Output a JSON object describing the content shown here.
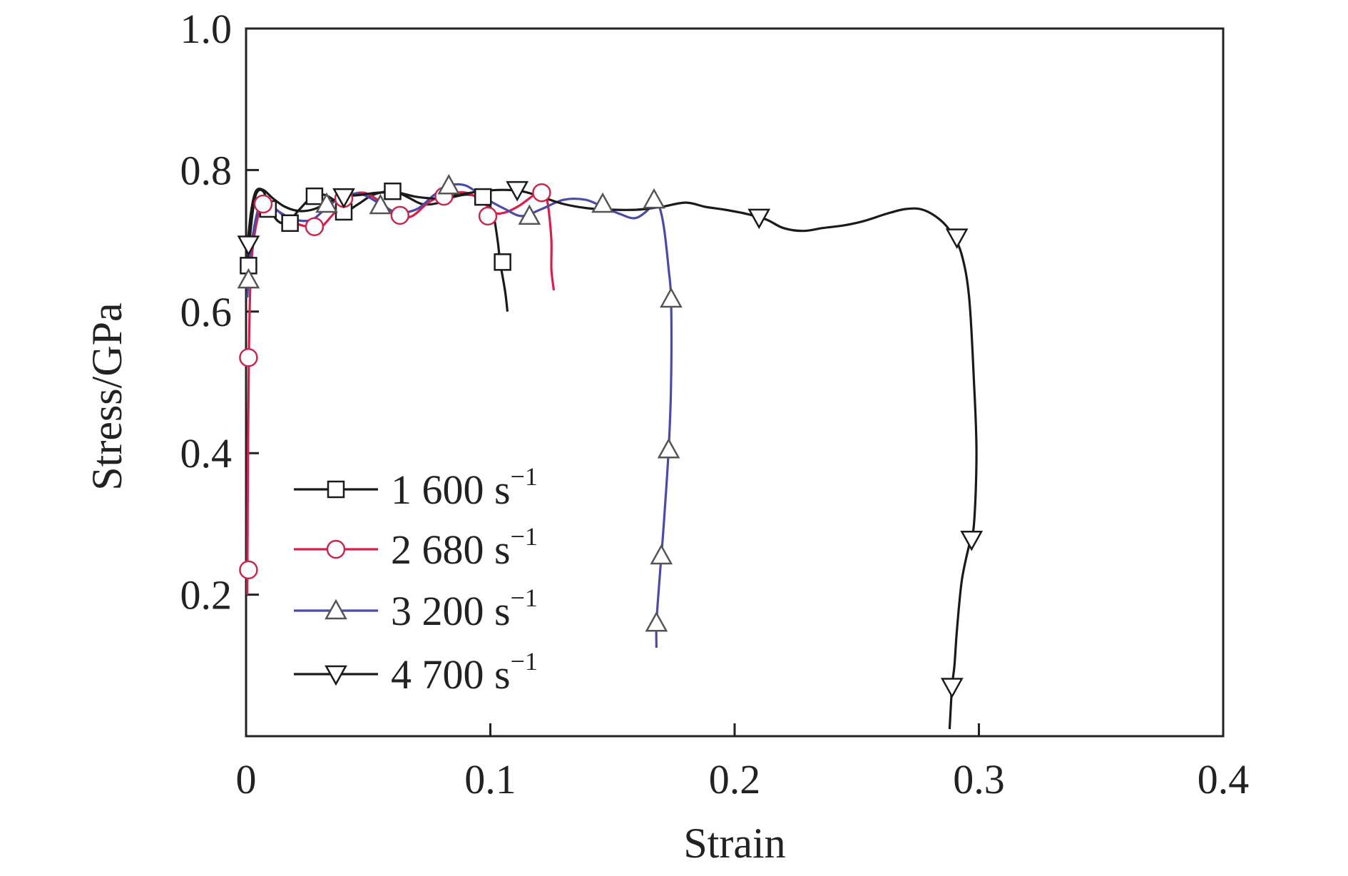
{
  "chart_data": {
    "type": "line",
    "title": "",
    "xlabel": "Strain",
    "ylabel": "Stress/GPa",
    "xlim": [
      0,
      0.4
    ],
    "ylim": [
      0,
      1.0
    ],
    "x_ticks": [
      "0",
      "0.1",
      "0.2",
      "0.3",
      "0.4"
    ],
    "y_ticks": [
      "0.2",
      "0.4",
      "0.6",
      "0.8",
      "1.0"
    ],
    "grid": false,
    "legend_position": "bottom-left",
    "series": [
      {
        "name": "1 600 s",
        "name_superscript": "−1",
        "color": "#1a1a1a",
        "marker": "square",
        "line_points": [
          [
            0.0005,
            0.66
          ],
          [
            0.002,
            0.72
          ],
          [
            0.004,
            0.765
          ],
          [
            0.007,
            0.77
          ],
          [
            0.01,
            0.745
          ],
          [
            0.013,
            0.728
          ],
          [
            0.017,
            0.726
          ],
          [
            0.022,
            0.745
          ],
          [
            0.027,
            0.762
          ],
          [
            0.032,
            0.765
          ],
          [
            0.037,
            0.755
          ],
          [
            0.041,
            0.743
          ],
          [
            0.046,
            0.752
          ],
          [
            0.052,
            0.765
          ],
          [
            0.06,
            0.77
          ],
          [
            0.066,
            0.762
          ],
          [
            0.072,
            0.752
          ],
          [
            0.078,
            0.753
          ],
          [
            0.085,
            0.762
          ],
          [
            0.092,
            0.765
          ],
          [
            0.098,
            0.755
          ],
          [
            0.101,
            0.74
          ],
          [
            0.103,
            0.7
          ],
          [
            0.104,
            0.67
          ],
          [
            0.106,
            0.63
          ],
          [
            0.107,
            0.6
          ]
        ],
        "markers": [
          [
            0.001,
            0.665
          ],
          [
            0.009,
            0.745
          ],
          [
            0.018,
            0.725
          ],
          [
            0.028,
            0.763
          ],
          [
            0.04,
            0.741
          ],
          [
            0.06,
            0.77
          ],
          [
            0.097,
            0.762
          ],
          [
            0.105,
            0.67
          ]
        ]
      },
      {
        "name": "2 680 s",
        "name_superscript": "−1",
        "color": "#d81e4b",
        "marker": "circle",
        "line_points": [
          [
            0.0005,
            0.2
          ],
          [
            0.0008,
            0.4
          ],
          [
            0.0012,
            0.55
          ],
          [
            0.002,
            0.66
          ],
          [
            0.004,
            0.72
          ],
          [
            0.007,
            0.752
          ],
          [
            0.012,
            0.745
          ],
          [
            0.018,
            0.728
          ],
          [
            0.025,
            0.72
          ],
          [
            0.03,
            0.718
          ],
          [
            0.035,
            0.735
          ],
          [
            0.041,
            0.76
          ],
          [
            0.048,
            0.768
          ],
          [
            0.055,
            0.755
          ],
          [
            0.062,
            0.735
          ],
          [
            0.068,
            0.735
          ],
          [
            0.075,
            0.755
          ],
          [
            0.082,
            0.765
          ],
          [
            0.09,
            0.768
          ],
          [
            0.097,
            0.755
          ],
          [
            0.101,
            0.74
          ],
          [
            0.106,
            0.74
          ],
          [
            0.112,
            0.75
          ],
          [
            0.118,
            0.765
          ],
          [
            0.121,
            0.768
          ],
          [
            0.123,
            0.76
          ],
          [
            0.124,
            0.74
          ],
          [
            0.125,
            0.7
          ],
          [
            0.125,
            0.66
          ],
          [
            0.126,
            0.63
          ]
        ],
        "markers": [
          [
            0.001,
            0.235
          ],
          [
            0.001,
            0.535
          ],
          [
            0.007,
            0.752
          ],
          [
            0.028,
            0.72
          ],
          [
            0.04,
            0.76
          ],
          [
            0.063,
            0.736
          ],
          [
            0.081,
            0.763
          ],
          [
            0.099,
            0.735
          ],
          [
            0.121,
            0.768
          ]
        ]
      },
      {
        "name": "3 200 s",
        "name_superscript": "−1",
        "color": "#4b4aa5",
        "marker": "triangle-up",
        "line_points": [
          [
            0.0005,
            0.62
          ],
          [
            0.002,
            0.69
          ],
          [
            0.005,
            0.745
          ],
          [
            0.008,
            0.755
          ],
          [
            0.014,
            0.74
          ],
          [
            0.02,
            0.73
          ],
          [
            0.027,
            0.73
          ],
          [
            0.034,
            0.75
          ],
          [
            0.041,
            0.765
          ],
          [
            0.048,
            0.765
          ],
          [
            0.055,
            0.752
          ],
          [
            0.062,
            0.74
          ],
          [
            0.07,
            0.745
          ],
          [
            0.077,
            0.765
          ],
          [
            0.083,
            0.778
          ],
          [
            0.09,
            0.778
          ],
          [
            0.098,
            0.76
          ],
          [
            0.106,
            0.745
          ],
          [
            0.113,
            0.735
          ],
          [
            0.121,
            0.745
          ],
          [
            0.13,
            0.758
          ],
          [
            0.139,
            0.758
          ],
          [
            0.146,
            0.748
          ],
          [
            0.153,
            0.738
          ],
          [
            0.159,
            0.732
          ],
          [
            0.164,
            0.742
          ],
          [
            0.167,
            0.755
          ],
          [
            0.169,
            0.75
          ],
          [
            0.171,
            0.72
          ],
          [
            0.173,
            0.66
          ],
          [
            0.174,
            0.615
          ],
          [
            0.174,
            0.5
          ],
          [
            0.173,
            0.405
          ],
          [
            0.171,
            0.3
          ],
          [
            0.17,
            0.255
          ],
          [
            0.169,
            0.21
          ],
          [
            0.168,
            0.16
          ],
          [
            0.168,
            0.125
          ]
        ],
        "markers": [
          [
            0.001,
            0.645
          ],
          [
            0.033,
            0.752
          ],
          [
            0.055,
            0.75
          ],
          [
            0.083,
            0.778
          ],
          [
            0.116,
            0.735
          ],
          [
            0.146,
            0.752
          ],
          [
            0.167,
            0.758
          ],
          [
            0.174,
            0.618
          ],
          [
            0.173,
            0.405
          ],
          [
            0.17,
            0.255
          ],
          [
            0.168,
            0.16
          ]
        ]
      },
      {
        "name": "4 700 s",
        "name_superscript": "−1",
        "color": "#1a1a1a",
        "marker": "triangle-down",
        "line_points": [
          [
            0.0005,
            0.69
          ],
          [
            0.002,
            0.74
          ],
          [
            0.004,
            0.77
          ],
          [
            0.007,
            0.772
          ],
          [
            0.011,
            0.76
          ],
          [
            0.016,
            0.748
          ],
          [
            0.022,
            0.742
          ],
          [
            0.028,
            0.745
          ],
          [
            0.034,
            0.755
          ],
          [
            0.04,
            0.762
          ],
          [
            0.047,
            0.765
          ],
          [
            0.054,
            0.768
          ],
          [
            0.062,
            0.768
          ],
          [
            0.07,
            0.762
          ],
          [
            0.078,
            0.76
          ],
          [
            0.087,
            0.765
          ],
          [
            0.096,
            0.77
          ],
          [
            0.105,
            0.772
          ],
          [
            0.113,
            0.77
          ],
          [
            0.121,
            0.762
          ],
          [
            0.13,
            0.752
          ],
          [
            0.14,
            0.746
          ],
          [
            0.15,
            0.744
          ],
          [
            0.16,
            0.744
          ],
          [
            0.17,
            0.748
          ],
          [
            0.18,
            0.754
          ],
          [
            0.188,
            0.748
          ],
          [
            0.196,
            0.744
          ],
          [
            0.205,
            0.738
          ],
          [
            0.213,
            0.73
          ],
          [
            0.22,
            0.718
          ],
          [
            0.228,
            0.714
          ],
          [
            0.236,
            0.718
          ],
          [
            0.245,
            0.722
          ],
          [
            0.253,
            0.728
          ],
          [
            0.262,
            0.738
          ],
          [
            0.27,
            0.745
          ],
          [
            0.277,
            0.744
          ],
          [
            0.284,
            0.73
          ],
          [
            0.289,
            0.71
          ],
          [
            0.293,
            0.68
          ],
          [
            0.296,
            0.62
          ],
          [
            0.298,
            0.5
          ],
          [
            0.299,
            0.4
          ],
          [
            0.298,
            0.3
          ],
          [
            0.296,
            0.27
          ],
          [
            0.293,
            0.22
          ],
          [
            0.291,
            0.15
          ],
          [
            0.29,
            0.1
          ],
          [
            0.289,
            0.07
          ],
          [
            0.288,
            0.01
          ]
        ],
        "markers": [
          [
            0.001,
            0.695
          ],
          [
            0.04,
            0.762
          ],
          [
            0.111,
            0.772
          ],
          [
            0.21,
            0.733
          ],
          [
            0.291,
            0.705
          ],
          [
            0.297,
            0.278
          ],
          [
            0.289,
            0.07
          ]
        ]
      }
    ]
  }
}
